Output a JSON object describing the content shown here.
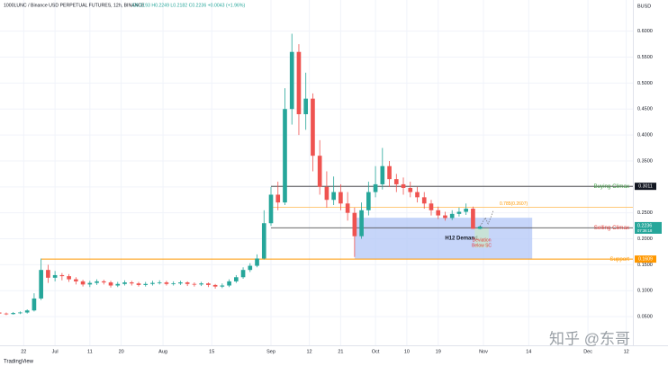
{
  "header": {
    "title": "1000LUNC / Binance USD PERPETUAL FUTURES, 12h, BINANCE",
    "ohlc": "O0.2193 H0.2249 L0.2182 C0.2236 +0.0043 (+1.96%)"
  },
  "footer": {
    "logo": "TradingView",
    "watermark": "知乎 @东哥"
  },
  "chart_data": {
    "type": "candlestick",
    "currency": "BUSD",
    "ylim": [
      0,
      0.66
    ],
    "yticks": [
      {
        "value": 0.05,
        "label": "0.0500"
      },
      {
        "value": 0.1,
        "label": "0.1000"
      },
      {
        "value": 0.15,
        "label": "0.1500"
      },
      {
        "value": 0.2,
        "label": "0.2000"
      },
      {
        "value": 0.25,
        "label": "0.2500"
      },
      {
        "value": 0.3,
        "label": "0.3000"
      },
      {
        "value": 0.35,
        "label": "0.3500"
      },
      {
        "value": 0.4,
        "label": "0.4000"
      },
      {
        "value": 0.45,
        "label": "0.4500"
      },
      {
        "value": 0.5,
        "label": "0.5000"
      },
      {
        "value": 0.55,
        "label": "0.5500"
      },
      {
        "value": 0.6,
        "label": "0.6000"
      }
    ],
    "xlim": [
      -15.8,
      165.9
    ],
    "xticks": [
      {
        "value": -9,
        "label": "22"
      },
      {
        "value": 0,
        "label": "Jul"
      },
      {
        "value": 10,
        "label": "11"
      },
      {
        "value": 19,
        "label": "20"
      },
      {
        "value": 31,
        "label": "Aug"
      },
      {
        "value": 45,
        "label": "15"
      },
      {
        "value": 62,
        "label": "Sep"
      },
      {
        "value": 73,
        "label": "12"
      },
      {
        "value": 82,
        "label": "21"
      },
      {
        "value": 92,
        "label": "Oct"
      },
      {
        "value": 101,
        "label": "10"
      },
      {
        "value": 110,
        "label": "19"
      },
      {
        "value": 123,
        "label": "Nov"
      },
      {
        "value": 136,
        "label": "14"
      },
      {
        "value": 153,
        "label": "Dec"
      },
      {
        "value": 164,
        "label": "12"
      }
    ],
    "grid": true,
    "up_color": "#26a69a",
    "down_color": "#ef5350",
    "x": [
      -16,
      -14,
      -12,
      -10,
      -8,
      -6,
      -4,
      -2,
      0,
      2,
      4,
      6,
      8,
      10,
      12,
      14,
      16,
      18,
      20,
      22,
      24,
      26,
      28,
      30,
      32,
      34,
      36,
      38,
      40,
      42,
      44,
      46,
      48,
      50,
      52,
      54,
      56,
      58,
      60,
      62,
      64,
      66,
      68,
      70,
      72,
      74,
      76,
      78,
      80,
      82,
      84,
      86,
      88,
      90,
      92,
      94,
      96,
      98,
      100,
      102,
      104,
      106,
      108,
      110,
      112,
      114,
      116,
      118,
      120,
      122
    ],
    "open": [
      0.058,
      0.056,
      0.055,
      0.057,
      0.058,
      0.062,
      0.085,
      0.14,
      0.125,
      0.13,
      0.128,
      0.122,
      0.118,
      0.112,
      0.115,
      0.118,
      0.116,
      0.11,
      0.113,
      0.116,
      0.114,
      0.111,
      0.113,
      0.115,
      0.116,
      0.113,
      0.114,
      0.116,
      0.113,
      0.112,
      0.114,
      0.111,
      0.108,
      0.11,
      0.118,
      0.126,
      0.14,
      0.148,
      0.162,
      0.23,
      0.285,
      0.27,
      0.45,
      0.56,
      0.44,
      0.47,
      0.36,
      0.3,
      0.275,
      0.29,
      0.268,
      0.25,
      0.205,
      0.255,
      0.29,
      0.305,
      0.34,
      0.315,
      0.305,
      0.298,
      0.29,
      0.28,
      0.268,
      0.255,
      0.245,
      0.24,
      0.248,
      0.252,
      0.258,
      0.2193
    ],
    "high": [
      0.06,
      0.058,
      0.059,
      0.06,
      0.064,
      0.095,
      0.162,
      0.15,
      0.138,
      0.134,
      0.132,
      0.126,
      0.121,
      0.119,
      0.122,
      0.121,
      0.119,
      0.117,
      0.12,
      0.119,
      0.117,
      0.117,
      0.119,
      0.12,
      0.119,
      0.118,
      0.119,
      0.118,
      0.116,
      0.117,
      0.116,
      0.113,
      0.114,
      0.122,
      0.13,
      0.145,
      0.153,
      0.17,
      0.255,
      0.3,
      0.31,
      0.49,
      0.595,
      0.575,
      0.52,
      0.48,
      0.39,
      0.33,
      0.32,
      0.305,
      0.29,
      0.26,
      0.27,
      0.31,
      0.34,
      0.375,
      0.35,
      0.325,
      0.318,
      0.31,
      0.3,
      0.29,
      0.275,
      0.262,
      0.252,
      0.255,
      0.26,
      0.268,
      0.262,
      0.2249
    ],
    "low": [
      0.054,
      0.053,
      0.054,
      0.055,
      0.056,
      0.06,
      0.082,
      0.115,
      0.118,
      0.12,
      0.117,
      0.112,
      0.108,
      0.107,
      0.111,
      0.112,
      0.106,
      0.107,
      0.11,
      0.11,
      0.108,
      0.108,
      0.11,
      0.112,
      0.11,
      0.11,
      0.111,
      0.109,
      0.108,
      0.109,
      0.107,
      0.104,
      0.105,
      0.107,
      0.115,
      0.123,
      0.136,
      0.145,
      0.16,
      0.225,
      0.255,
      0.265,
      0.42,
      0.4,
      0.41,
      0.33,
      0.285,
      0.26,
      0.265,
      0.255,
      0.235,
      0.165,
      0.2,
      0.245,
      0.28,
      0.295,
      0.3,
      0.29,
      0.285,
      0.28,
      0.27,
      0.258,
      0.245,
      0.238,
      0.235,
      0.236,
      0.243,
      0.246,
      0.2193,
      0.2182
    ],
    "close": [
      0.056,
      0.055,
      0.057,
      0.058,
      0.062,
      0.085,
      0.14,
      0.125,
      0.13,
      0.128,
      0.122,
      0.118,
      0.112,
      0.115,
      0.118,
      0.116,
      0.11,
      0.113,
      0.116,
      0.114,
      0.111,
      0.113,
      0.115,
      0.116,
      0.113,
      0.114,
      0.116,
      0.113,
      0.112,
      0.114,
      0.111,
      0.108,
      0.11,
      0.118,
      0.126,
      0.14,
      0.148,
      0.162,
      0.23,
      0.285,
      0.27,
      0.45,
      0.56,
      0.44,
      0.47,
      0.36,
      0.3,
      0.275,
      0.29,
      0.268,
      0.25,
      0.205,
      0.255,
      0.29,
      0.305,
      0.34,
      0.315,
      0.305,
      0.298,
      0.29,
      0.28,
      0.268,
      0.255,
      0.245,
      0.24,
      0.248,
      0.252,
      0.258,
      0.2193,
      0.2236
    ],
    "levels": [
      {
        "label": "Buying Climax",
        "value": 0.3011,
        "from": 62,
        "label_color": "#43a047",
        "line_color": "#333333",
        "tag": true
      },
      {
        "label": "Selling Climax",
        "value": 0.2212,
        "from": 62,
        "label_color": "#e53935",
        "line_color": "#555555",
        "tag": true
      },
      {
        "label": "Support",
        "value": 0.1609,
        "from": -4,
        "label_color": "#ff9800",
        "line_color": "#ff9800",
        "tag": true
      },
      {
        "label": "0.785(0.2607)",
        "value": 0.2607,
        "from": 62,
        "label_color": "#ff9800",
        "line_color": "#ffb74d",
        "tag": false
      }
    ],
    "zones": [
      {
        "label": "H12 Demand",
        "top": 0.2406,
        "bottom": 0.1609,
        "from": 86,
        "to": 137,
        "color": "#b3c7f7"
      },
      {
        "label": "Deviation\nBelow SC",
        "top": 0.2212,
        "bottom": 0.183,
        "from": 120.5,
        "to": 124.5,
        "color": "#c8e6c9",
        "label_color": "#e53935"
      }
    ],
    "price_tag": {
      "value": 0.2236,
      "countdown": "07:36:18",
      "color": "#26a69a"
    }
  }
}
